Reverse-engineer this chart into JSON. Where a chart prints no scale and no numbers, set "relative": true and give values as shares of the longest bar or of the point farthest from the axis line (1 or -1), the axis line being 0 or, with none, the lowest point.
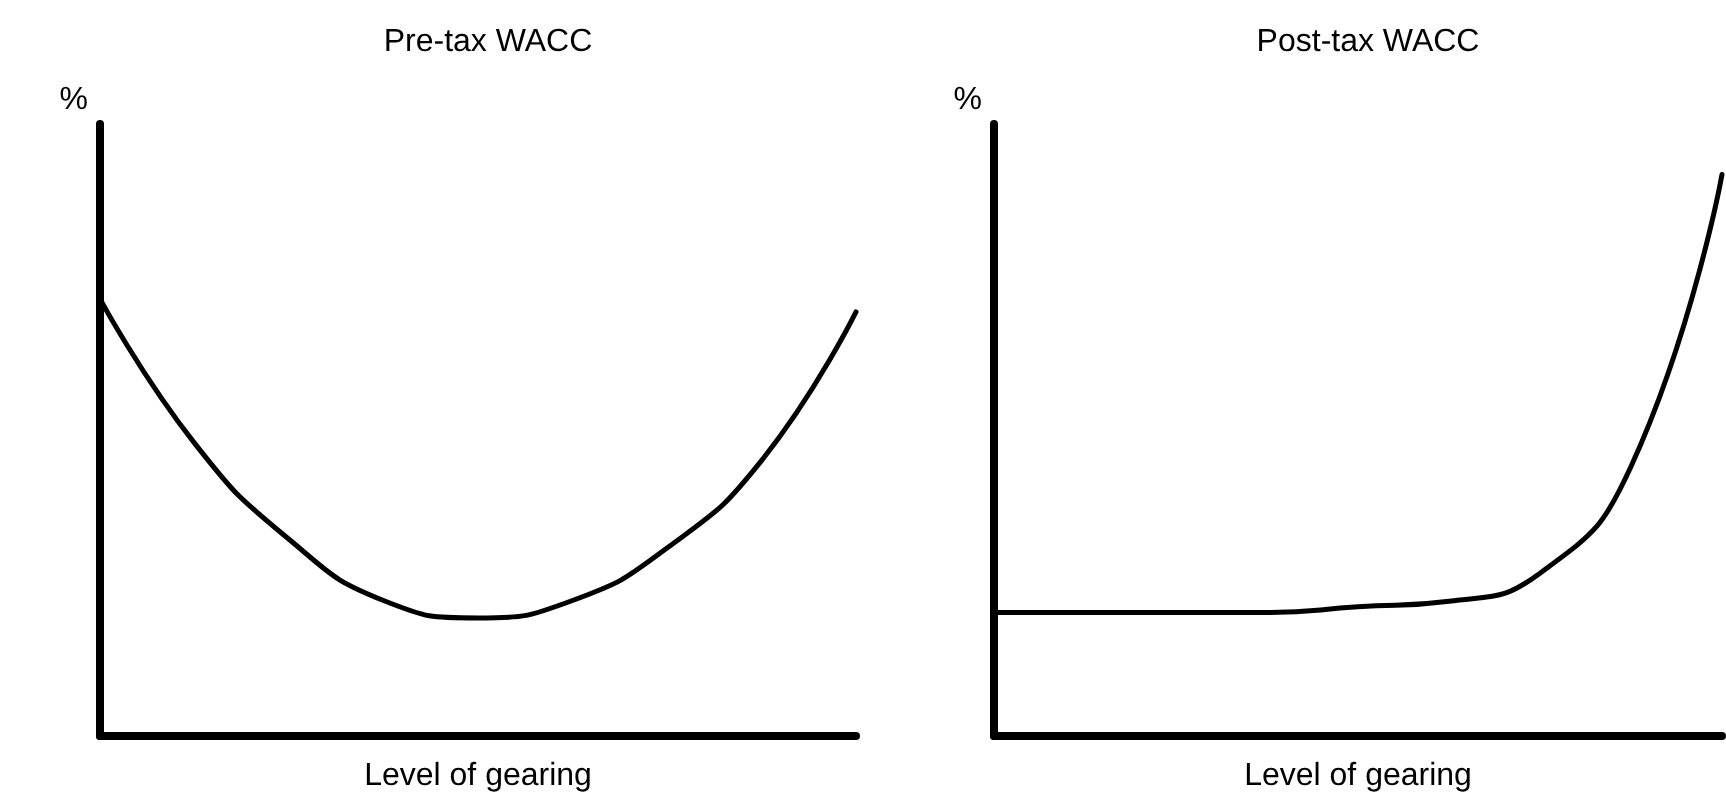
{
  "chart_data": [
    {
      "type": "line",
      "title": "Pre-tax WACC",
      "xlabel": "Level of gearing",
      "ylabel": "%",
      "relative": true,
      "tick_labels": false,
      "categories": [
        null,
        null,
        null,
        null,
        null,
        null,
        null,
        null,
        null
      ],
      "series": [
        {
          "color": "#000000",
          "values": [
            1,
            0.67,
            0.45,
            0.31,
            0.27,
            0.31,
            0.43,
            0.63,
            0.97
          ]
        }
      ]
    },
    {
      "type": "line",
      "title": "Post-tax WACC",
      "xlabel": "Level of gearing",
      "ylabel": "%",
      "relative": true,
      "tick_labels": false,
      "categories": [
        null,
        null,
        null,
        null,
        null,
        null,
        null,
        null,
        null
      ],
      "series": [
        {
          "color": "#000000",
          "values": [
            0.22,
            0.22,
            0.22,
            0.22,
            0.23,
            0.24,
            0.29,
            0.48,
            1
          ]
        }
      ]
    }
  ]
}
